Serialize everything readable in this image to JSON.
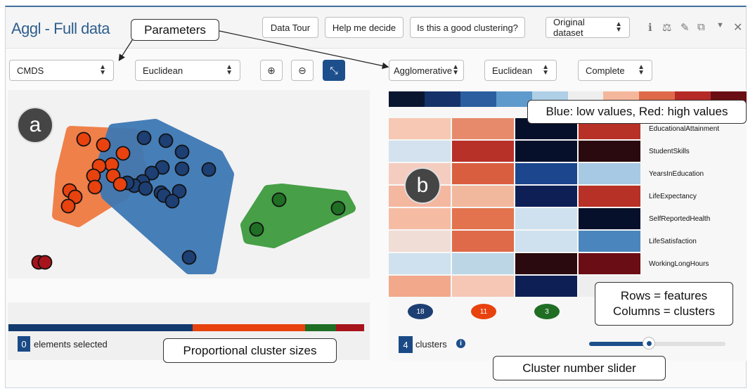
{
  "app": {
    "title": "Aggl - Full data"
  },
  "header_buttons": {
    "data_tour": "Data Tour",
    "help": "Help me decide",
    "good_clustering": "Is this a good clustering?",
    "dataset": "Original dataset"
  },
  "header_icons": [
    "info-icon",
    "balance-icon",
    "edit-icon",
    "copy-icon",
    "caret-down-icon",
    "close-icon"
  ],
  "left_controls": {
    "projection": "CMDS",
    "distance": "Euclidean"
  },
  "right_controls": {
    "algorithm": "Agglomerative",
    "distance": "Euclidean",
    "linkage": "Complete"
  },
  "colors": {
    "cluster_blue": "#1d3f73",
    "cluster_orange": "#e8420f",
    "cluster_green": "#1f6e24",
    "cluster_red": "#a8141b",
    "hull_orange": "#ef7a40",
    "hull_blue": "#3d78b4",
    "hull_green": "#3e9b3e"
  },
  "color_scale": [
    "#0a1530",
    "#15336a",
    "#2a5e9e",
    "#5f9acc",
    "#aecfe6",
    "#eeeeee",
    "#f5b79c",
    "#df6a4a",
    "#b52a27",
    "#6b0d14"
  ],
  "heatmap": {
    "rows": [
      {
        "label": "EducationalAttainment",
        "cells": [
          "#f7c8b4",
          "#e68a6b",
          "#07102a",
          "#b73126"
        ]
      },
      {
        "label": "StudentSkills",
        "cells": [
          "#d3e2ee",
          "#b83129",
          "#07102a",
          "#2a0a0e"
        ]
      },
      {
        "label": "YearsInEducation",
        "cells": [
          "#f5cdc0",
          "#d95e40",
          "#1c468e",
          "#a7c9e3"
        ]
      },
      {
        "label": "LifeExpectancy",
        "cells": [
          "#f4b79f",
          "#f2b89d",
          "#0d1f55",
          "#b73126"
        ]
      },
      {
        "label": "SelfReportedHealth",
        "cells": [
          "#f5bca3",
          "#e2734e",
          "#cfe1ee",
          "#07102a"
        ]
      },
      {
        "label": "LifeSatisfaction",
        "cells": [
          "#f0ddd6",
          "#df6a4a",
          "#cfe1ee",
          "#4a86bd"
        ]
      },
      {
        "label": "WorkingLongHours",
        "cells": [
          "#cfe1ee",
          "#bdd6e6",
          "#2a0a0e",
          "#6b0d14"
        ]
      },
      {
        "label": "",
        "cells": [
          "#f2a88a",
          "#f5c7b4",
          "#0d1f55",
          "#eeeeee"
        ]
      }
    ]
  },
  "cluster_sizes": [
    {
      "count": "18",
      "color": "#1d3f73"
    },
    {
      "count": "11",
      "color": "#e8420f"
    },
    {
      "count": "3",
      "color": "#1f6e24"
    }
  ],
  "proportions": [
    {
      "fraction": 0.5178,
      "color": "#123a6e"
    },
    {
      "fraction": 0.3161,
      "color": "#e8420f"
    },
    {
      "fraction": 0.0861,
      "color": "#1f6e24"
    },
    {
      "fraction": 0.08,
      "color": "#a8141b"
    }
  ],
  "selection": {
    "count": "0",
    "label": "elements selected"
  },
  "clusters": {
    "count": "4",
    "label": "clusters"
  },
  "slider": {
    "value_fraction": 0.44
  },
  "callouts": {
    "parameters": "Parameters",
    "blue_red": "Blue: low values, Red: high values",
    "rows_cols_1": "Rows = features",
    "rows_cols_2": "Columns = clusters",
    "proportional": "Proportional cluster sizes",
    "slider": "Cluster number slider"
  },
  "markers": {
    "a": "a",
    "b": "b"
  }
}
